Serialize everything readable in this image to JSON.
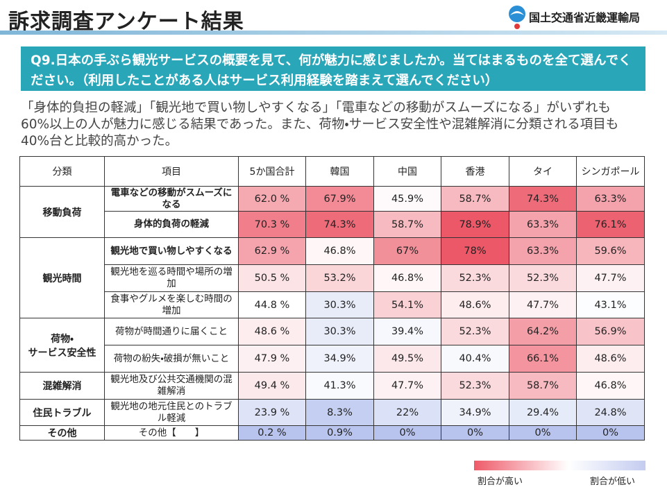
{
  "header": {
    "title": "訴求調査アンケート結果",
    "organization": "国土交通省近畿運輸局"
  },
  "question": "Q9.日本の手ぶら観光サービスの概要を見て、何が魅力に感じましたか。当てはまるものを全て選んでください。（利用したことがある人はサービス利用経験を踏まえて選んでください）",
  "summary": "「身体的負担の軽減」「観光地で買い物しやすくなる」「電車などの移動がスムーズになる」がいずれも60%以上の人が魅力に感じる結果であった。また、荷物・サービス安全性や混雑解消に分類される項目も40%台と比較的高かった。",
  "table": {
    "columns": [
      "分類",
      "項目",
      "5か国合計",
      "韓国",
      "中国",
      "香港",
      "タイ",
      "シンガポール"
    ],
    "groups": [
      {
        "label": "移動負荷",
        "rows": [
          {
            "item": "電車などの移動がスムーズになる",
            "cells": [
              "62.0 %",
              "67.9%",
              "45.9%",
              "58.7%",
              "74.3%",
              "63.3%"
            ]
          },
          {
            "item": "身体的負荷の軽減",
            "cells": [
              "70.3 %",
              "74.3%",
              "58.7%",
              "78.9%",
              "63.3%",
              "76.1%"
            ]
          }
        ]
      },
      {
        "label": "観光時間",
        "rows": [
          {
            "item": "観光地で買い物しやすくなる",
            "cells": [
              "62.9 %",
              "46.8%",
              "67%",
              "78%",
              "63.3%",
              "59.6%"
            ]
          },
          {
            "item": "観光地を巡る時間や場所の増加",
            "cells": [
              "50.5 %",
              "53.2%",
              "46.8%",
              "52.3%",
              "52.3%",
              "47.7%"
            ]
          },
          {
            "item": "食事やグルメを楽しむ時間の増加",
            "cells": [
              "44.8 %",
              "30.3%",
              "54.1%",
              "48.6%",
              "47.7%",
              "43.1%"
            ]
          }
        ]
      },
      {
        "label": "荷物・\nサービス安全性",
        "rows": [
          {
            "item": "荷物が時間通りに届くこと",
            "cells": [
              "48.6 %",
              "30.3%",
              "39.4%",
              "52.3%",
              "64.2%",
              "56.9%"
            ]
          },
          {
            "item": "荷物の紛失・破損が無いこと",
            "cells": [
              "47.9 %",
              "34.9%",
              "49.5%",
              "40.4%",
              "66.1%",
              "48.6%"
            ]
          }
        ]
      },
      {
        "label": "混雑解消",
        "rows": [
          {
            "item": "観光地及び公共交通機関の混雑解消",
            "cells": [
              "49.4 %",
              "41.3%",
              "47.7%",
              "52.3%",
              "58.7%",
              "46.8%"
            ]
          }
        ]
      },
      {
        "label": "住民トラブル",
        "rows": [
          {
            "item": "観光地の地元住民とのトラブル軽減",
            "cells": [
              "23.9 %",
              "8.3%",
              "22%",
              "34.9%",
              "29.4%",
              "24.8%"
            ]
          }
        ]
      },
      {
        "label": "その他",
        "rows": [
          {
            "item": "その他【　　】",
            "cells": [
              "0.2 %",
              "0.9%",
              "0%",
              "0%",
              "0%",
              "0%"
            ]
          }
        ]
      }
    ]
  },
  "legend": {
    "high": "割合が高い",
    "low": "割合が低い"
  }
}
